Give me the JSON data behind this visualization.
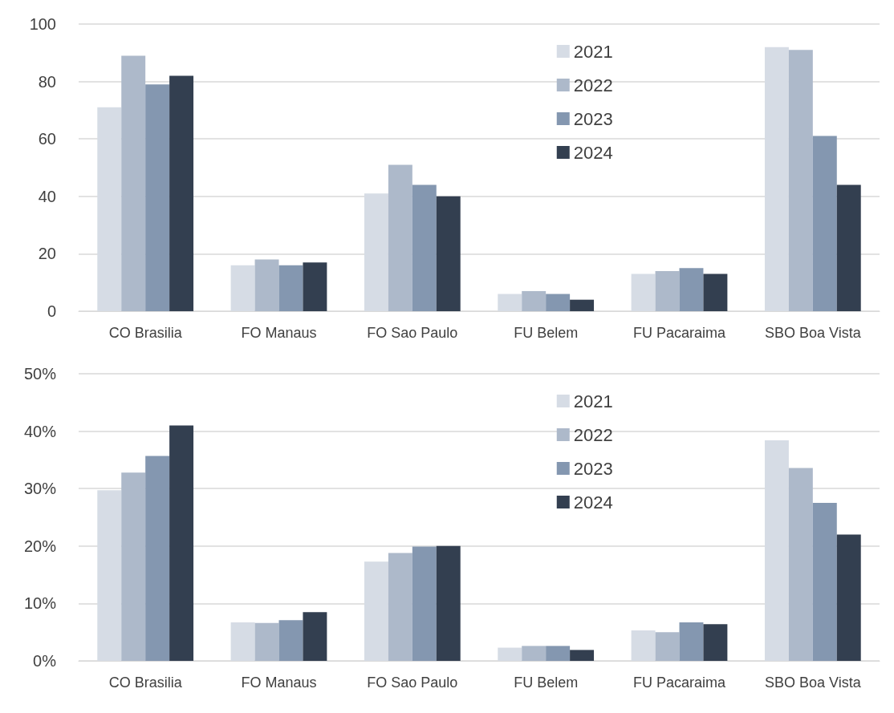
{
  "chart_data": [
    {
      "type": "bar",
      "categories": [
        "CO Brasilia",
        "FO Manaus",
        "FO Sao Paulo",
        "FU Belem",
        "FU Pacaraima",
        "SBO Boa Vista"
      ],
      "series": [
        {
          "name": "2021",
          "color": "#d6dce5",
          "values": [
            71,
            16,
            41,
            6,
            13,
            92
          ]
        },
        {
          "name": "2022",
          "color": "#adb9ca",
          "values": [
            89,
            18,
            51,
            7,
            14,
            91
          ]
        },
        {
          "name": "2023",
          "color": "#8497b0",
          "values": [
            79,
            16,
            44,
            6,
            15,
            61
          ]
        },
        {
          "name": "2024",
          "color": "#333f50",
          "values": [
            82,
            17,
            40,
            4,
            13,
            44
          ]
        }
      ],
      "ylim": [
        0,
        100
      ],
      "yticks": [
        0,
        20,
        40,
        60,
        80,
        100
      ],
      "grid": "y",
      "legend": "top right"
    },
    {
      "type": "bar",
      "categories": [
        "CO Brasilia",
        "FO Manaus",
        "FO Sao Paulo",
        "FU Belem",
        "FU Pacaraima",
        "SBO Boa Vista"
      ],
      "series": [
        {
          "name": "2021",
          "color": "#d6dce5",
          "values": [
            29.7,
            6.7,
            17.3,
            2.3,
            5.3,
            38.4
          ]
        },
        {
          "name": "2022",
          "color": "#adb9ca",
          "values": [
            32.8,
            6.6,
            18.8,
            2.6,
            5.0,
            33.6
          ]
        },
        {
          "name": "2023",
          "color": "#8497b0",
          "values": [
            35.7,
            7.1,
            19.9,
            2.6,
            6.7,
            27.5
          ]
        },
        {
          "name": "2024",
          "color": "#333f50",
          "values": [
            41,
            8.5,
            20,
            1.9,
            6.4,
            22
          ]
        }
      ],
      "ylim": [
        0,
        50
      ],
      "yticks": [
        {
          "value": 0,
          "label": "0%"
        },
        {
          "value": 10,
          "label": "10%"
        },
        {
          "value": 20,
          "label": "20%"
        },
        {
          "value": 30,
          "label": "30%"
        },
        {
          "value": 40,
          "label": "40%"
        },
        {
          "value": 50,
          "label": "50%"
        }
      ],
      "grid": "y",
      "legend": "top right"
    }
  ]
}
